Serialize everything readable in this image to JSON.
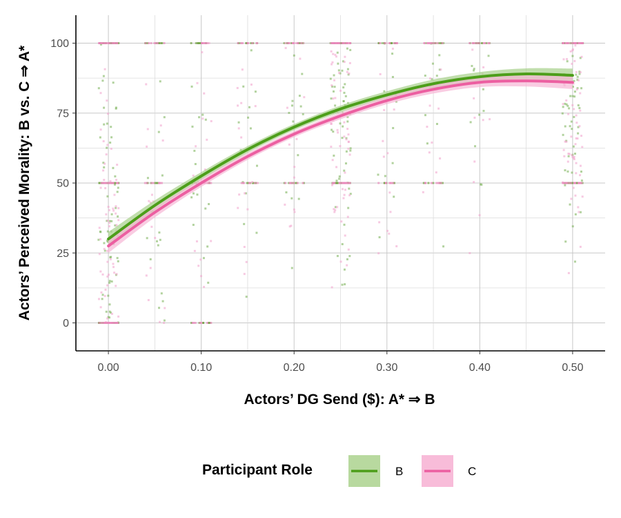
{
  "chart_data": {
    "type": "scatter",
    "xlabel": "Actors’ DG Send ($): A* ⇒ B",
    "ylabel": "Actors’ Perceived Morality: B vs. C ⇒ A*",
    "xlim": [
      -0.035,
      0.535
    ],
    "ylim": [
      -10,
      110
    ],
    "x_ticks": [
      0.0,
      0.1,
      0.2,
      0.3,
      0.4,
      0.5
    ],
    "x_tick_labels": [
      "0.00",
      "0.10",
      "0.20",
      "0.30",
      "0.40",
      "0.50"
    ],
    "y_ticks": [
      0,
      25,
      50,
      75,
      100
    ],
    "y_tick_labels": [
      "0",
      "25",
      "50",
      "75",
      "100"
    ],
    "grid": true,
    "legend": {
      "title": "Participant Role",
      "position": "bottom",
      "entries": [
        "B",
        "C"
      ]
    },
    "series": [
      {
        "name": "B",
        "color": "#4d9e1a",
        "band_color": "#a6d08a",
        "fit_x": [
          0.0,
          0.05,
          0.1,
          0.15,
          0.2,
          0.25,
          0.3,
          0.35,
          0.4,
          0.45,
          0.5
        ],
        "fit_y": [
          30,
          42,
          52.5,
          62,
          70,
          76.5,
          81.5,
          85.5,
          88,
          89,
          88.5
        ],
        "fit_ci_half_width": [
          2.5,
          1.8,
          1.4,
          1.2,
          1.1,
          1.2,
          1.3,
          1.5,
          1.7,
          2.0,
          2.4
        ]
      },
      {
        "name": "C",
        "color": "#ec5fa1",
        "band_color": "#f7b6d6",
        "fit_x": [
          0.0,
          0.05,
          0.1,
          0.15,
          0.2,
          0.25,
          0.3,
          0.35,
          0.4,
          0.45,
          0.5
        ],
        "fit_y": [
          27.5,
          39.5,
          50,
          59.5,
          67.5,
          74,
          79.5,
          83.5,
          86,
          86.5,
          86
        ],
        "fit_ci_half_width": [
          2.5,
          1.8,
          1.4,
          1.2,
          1.1,
          1.2,
          1.3,
          1.5,
          1.7,
          2.0,
          2.4
        ]
      }
    ],
    "jitter_clusters": [
      {
        "x": 0.0,
        "heavy_y": [
          0,
          50,
          100
        ]
      },
      {
        "x": 0.05,
        "heavy_y": [
          50,
          100
        ]
      },
      {
        "x": 0.1,
        "heavy_y": [
          0,
          50,
          100
        ]
      },
      {
        "x": 0.15,
        "heavy_y": [
          50,
          100
        ]
      },
      {
        "x": 0.2,
        "heavy_y": [
          50,
          100
        ]
      },
      {
        "x": 0.25,
        "heavy_y": [
          50,
          100
        ]
      },
      {
        "x": 0.3,
        "heavy_y": [
          50,
          100
        ]
      },
      {
        "x": 0.35,
        "heavy_y": [
          50,
          100
        ]
      },
      {
        "x": 0.4,
        "heavy_y": [
          100
        ]
      },
      {
        "x": 0.5,
        "heavy_y": [
          50,
          100
        ]
      }
    ]
  }
}
